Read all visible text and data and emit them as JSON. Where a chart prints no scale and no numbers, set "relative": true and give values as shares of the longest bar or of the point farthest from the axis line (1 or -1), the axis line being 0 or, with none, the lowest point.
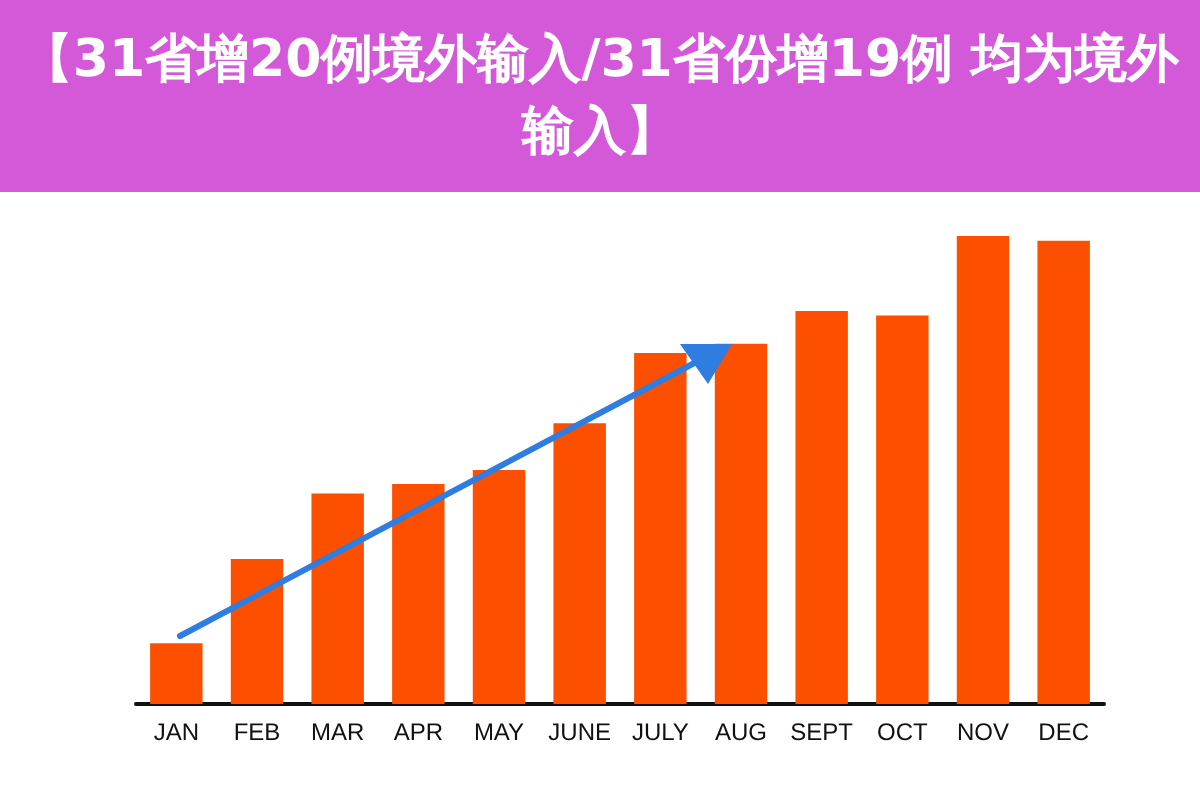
{
  "chart_data": {
    "type": "bar",
    "title": "【31省增20例境外输入/31省份增19例 均为境外输入】",
    "categories": [
      "JAN",
      "FEB",
      "MAR",
      "APR",
      "MAY",
      "JUNE",
      "JULY",
      "AUG",
      "SEPT",
      "OCT",
      "NOV",
      "DEC"
    ],
    "values": [
      0.13,
      0.31,
      0.45,
      0.47,
      0.5,
      0.6,
      0.75,
      0.77,
      0.84,
      0.83,
      1,
      0.99
    ],
    "color": "#fc5000",
    "relative": true
  }
}
